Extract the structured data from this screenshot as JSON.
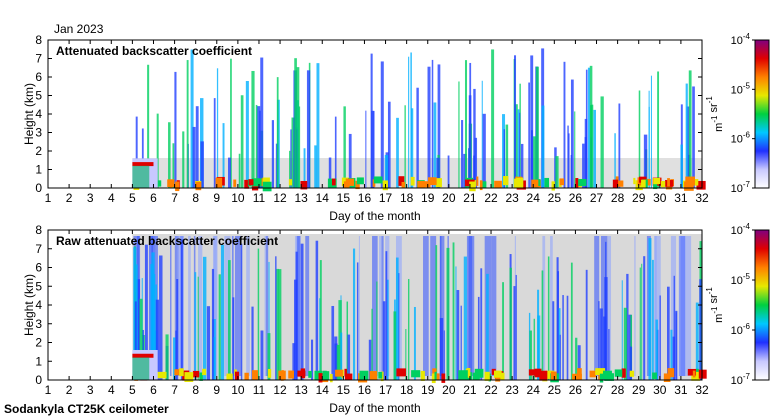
{
  "header": {
    "month_label": "Jan 2023"
  },
  "footer": {
    "instrument_label": "Sodankyla CT25K ceilometer"
  },
  "chart_data": [
    {
      "type": "heatmap",
      "title": "Attenuated backscatter coefficient",
      "xlabel": "Day of the month",
      "ylabel": "Height (km)",
      "xlim": [
        1,
        32
      ],
      "ylim": [
        0,
        8
      ],
      "x_ticks": [
        "1",
        "2",
        "3",
        "4",
        "5",
        "6",
        "7",
        "8",
        "9",
        "10",
        "11",
        "12",
        "13",
        "14",
        "15",
        "16",
        "17",
        "18",
        "19",
        "20",
        "21",
        "22",
        "23",
        "24",
        "25",
        "26",
        "27",
        "28",
        "29",
        "30",
        "31",
        "32"
      ],
      "y_ticks": [
        "0",
        "1",
        "2",
        "3",
        "4",
        "5",
        "6",
        "7",
        "8"
      ],
      "colorbar": {
        "scale": "log",
        "range": [
          1e-07,
          0.0001
        ],
        "ticks": [
          "10^-7",
          "10^-6",
          "10^-5",
          "10^-4"
        ],
        "unit_label": "m^-1 sr^-1",
        "colors": [
          "#ffffff",
          "#c8c8ff",
          "#2030ff",
          "#00c8ff",
          "#00d040",
          "#e8e800",
          "#ff8000",
          "#e00000",
          "#800080"
        ]
      },
      "data_start_day": 5.0
    },
    {
      "type": "heatmap",
      "title": "Raw attenuated backscatter coefficient",
      "xlabel": "Day of the month",
      "ylabel": "Height (km)",
      "xlim": [
        1,
        32
      ],
      "ylim": [
        0,
        8
      ],
      "x_ticks": [
        "1",
        "2",
        "3",
        "4",
        "5",
        "6",
        "7",
        "8",
        "9",
        "10",
        "11",
        "12",
        "13",
        "14",
        "15",
        "16",
        "17",
        "18",
        "19",
        "20",
        "21",
        "22",
        "23",
        "24",
        "25",
        "26",
        "27",
        "28",
        "29",
        "30",
        "31",
        "32"
      ],
      "y_ticks": [
        "0",
        "1",
        "2",
        "3",
        "4",
        "5",
        "6",
        "7",
        "8"
      ],
      "colorbar": {
        "scale": "log",
        "range": [
          1e-07,
          0.0001
        ],
        "ticks": [
          "10^-7",
          "10^-6",
          "10^-5",
          "10^-4"
        ],
        "unit_label": "m^-1 sr^-1",
        "colors": [
          "#ffffff",
          "#c8c8ff",
          "#2030ff",
          "#00c8ff",
          "#00d040",
          "#e8e800",
          "#ff8000",
          "#e00000",
          "#800080"
        ]
      },
      "data_start_day": 5.0
    }
  ]
}
